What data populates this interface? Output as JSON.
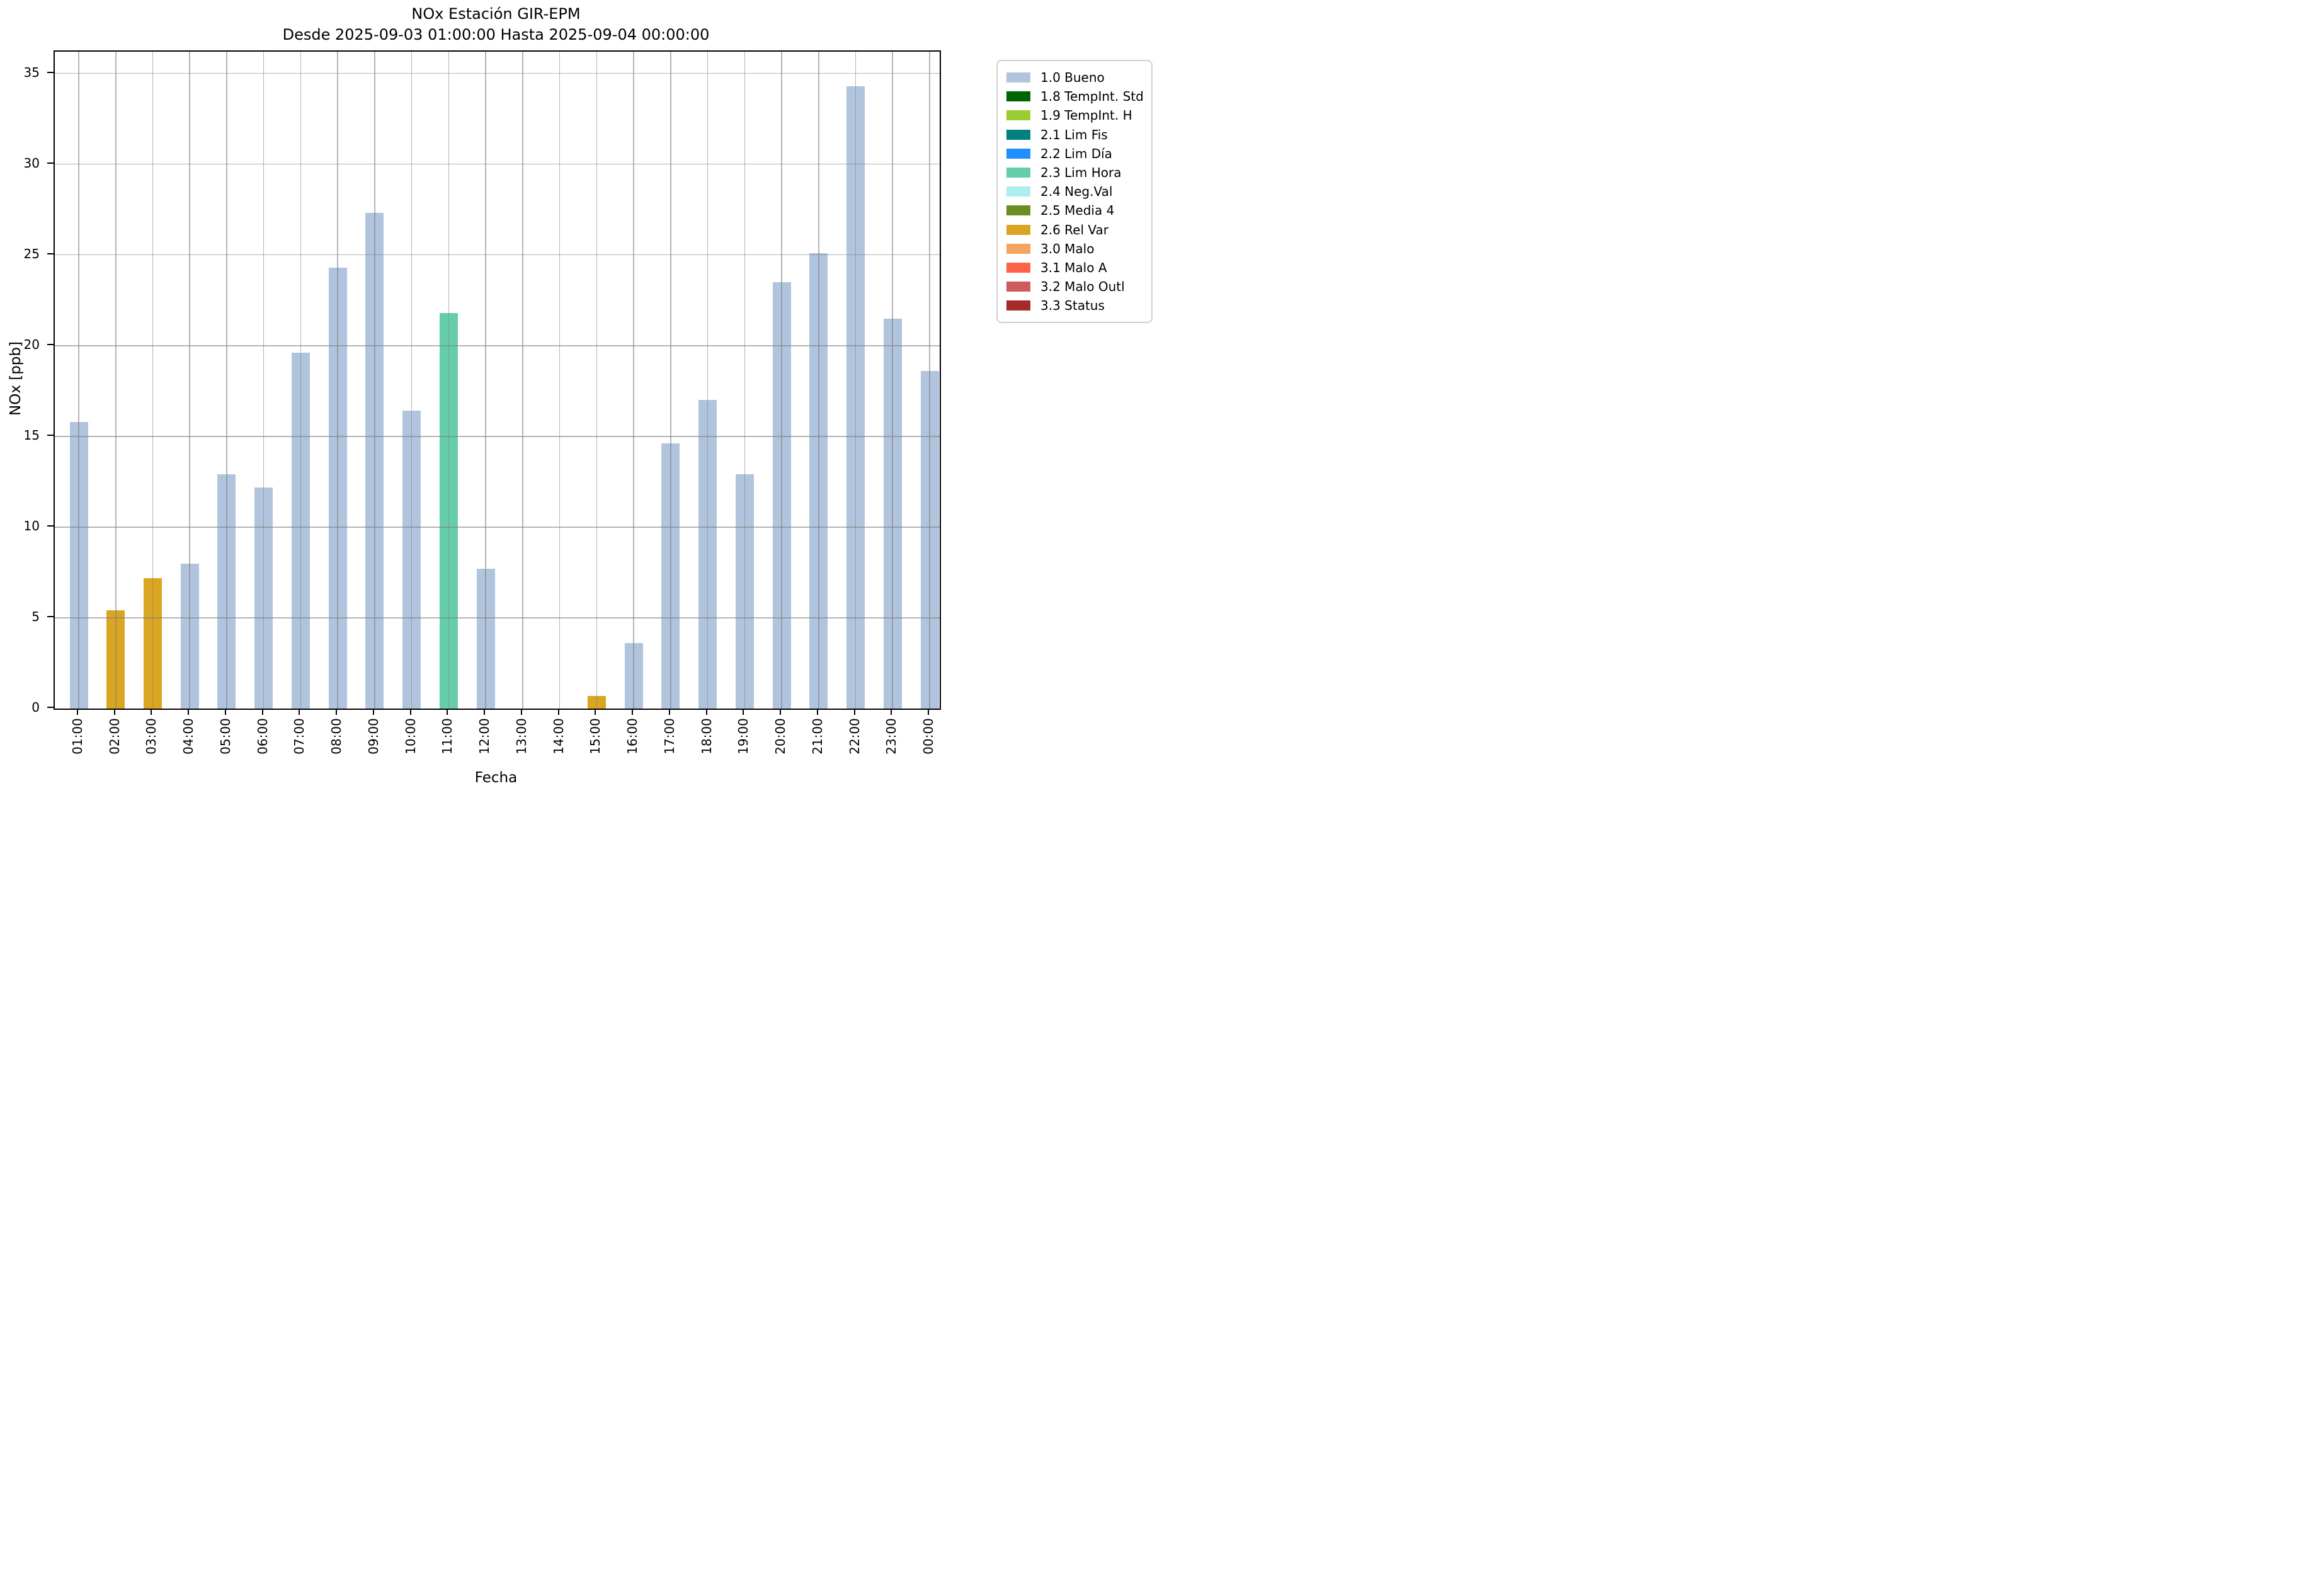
{
  "title": {
    "line1": "NOx Estación GIR-EPM",
    "line2": "Desde 2025-09-03 01:00:00 Hasta 2025-09-04 00:00:00"
  },
  "chart_data": {
    "type": "bar",
    "title_line1": "NOx Estación GIR-EPM",
    "title_line2": "Desde 2025-09-03 01:00:00 Hasta 2025-09-04 00:00:00",
    "xlabel": "Fecha",
    "ylabel": "NOx [ppb]",
    "ylim": [
      0,
      36.2
    ],
    "yticks": [
      0,
      5,
      10,
      15,
      20,
      25,
      30,
      35
    ],
    "grid": true,
    "grid_color": "#b0b0b0",
    "background_color": "#ffffff",
    "categories": [
      "01:00",
      "02:00",
      "03:00",
      "04:00",
      "05:00",
      "06:00",
      "07:00",
      "08:00",
      "09:00",
      "10:00",
      "11:00",
      "12:00",
      "13:00",
      "14:00",
      "15:00",
      "16:00",
      "17:00",
      "18:00",
      "19:00",
      "20:00",
      "21:00",
      "22:00",
      "23:00",
      "00:00"
    ],
    "values": [
      15.8,
      5.4,
      7.2,
      8.0,
      12.9,
      12.2,
      19.6,
      24.3,
      27.3,
      16.4,
      21.8,
      7.7,
      0,
      0,
      0.7,
      3.6,
      14.6,
      17.0,
      12.9,
      23.5,
      25.1,
      34.3,
      21.5,
      18.6
    ],
    "bar_flags": [
      "1.0 Bueno",
      "2.6 Rel Var",
      "2.6 Rel Var",
      "1.0 Bueno",
      "1.0 Bueno",
      "1.0 Bueno",
      "1.0 Bueno",
      "1.0 Bueno",
      "1.0 Bueno",
      "1.0 Bueno",
      "2.3 Lim Hora",
      "1.0 Bueno",
      "1.0 Bueno",
      "1.0 Bueno",
      "2.6 Rel Var",
      "1.0 Bueno",
      "1.0 Bueno",
      "1.0 Bueno",
      "1.0 Bueno",
      "1.0 Bueno",
      "1.0 Bueno",
      "1.0 Bueno",
      "1.0 Bueno",
      "1.0 Bueno"
    ],
    "flag_colors": {
      "1.0 Bueno": "#b0c4de",
      "1.8 TempInt. Std": "#006400",
      "1.9 TempInt. H": "#9acd32",
      "2.1 Lim Fis": "#008080",
      "2.2 Lim Día": "#1e90ff",
      "2.3 Lim Hora": "#66cdaa",
      "2.4 Neg.Val": "#afeeee",
      "2.5 Media 4": "#6b8e23",
      "2.6 Rel Var": "#daa520",
      "3.0 Malo": "#f4a460",
      "3.1 Malo A": "#ff6347",
      "3.2 Malo Outl": "#cd5c5c",
      "3.3 Status": "#a52a2a"
    },
    "legend": {
      "position": "upper-right-outside",
      "entries": [
        {
          "label": "1.0 Bueno",
          "color": "#b0c4de"
        },
        {
          "label": "1.8 TempInt. Std",
          "color": "#006400"
        },
        {
          "label": "1.9 TempInt. H",
          "color": "#9acd32"
        },
        {
          "label": "2.1 Lim Fis",
          "color": "#008080"
        },
        {
          "label": "2.2 Lim Día",
          "color": "#1e90ff"
        },
        {
          "label": "2.3 Lim Hora",
          "color": "#66cdaa"
        },
        {
          "label": "2.4 Neg.Val",
          "color": "#afeeee"
        },
        {
          "label": "2.5 Media 4",
          "color": "#6b8e23"
        },
        {
          "label": "2.6 Rel Var",
          "color": "#daa520"
        },
        {
          "label": "3.0 Malo",
          "color": "#f4a460"
        },
        {
          "label": "3.1 Malo A",
          "color": "#ff6347"
        },
        {
          "label": "3.2 Malo Outl",
          "color": "#cd5c5c"
        },
        {
          "label": "3.3 Status",
          "color": "#a52a2a"
        }
      ]
    }
  }
}
